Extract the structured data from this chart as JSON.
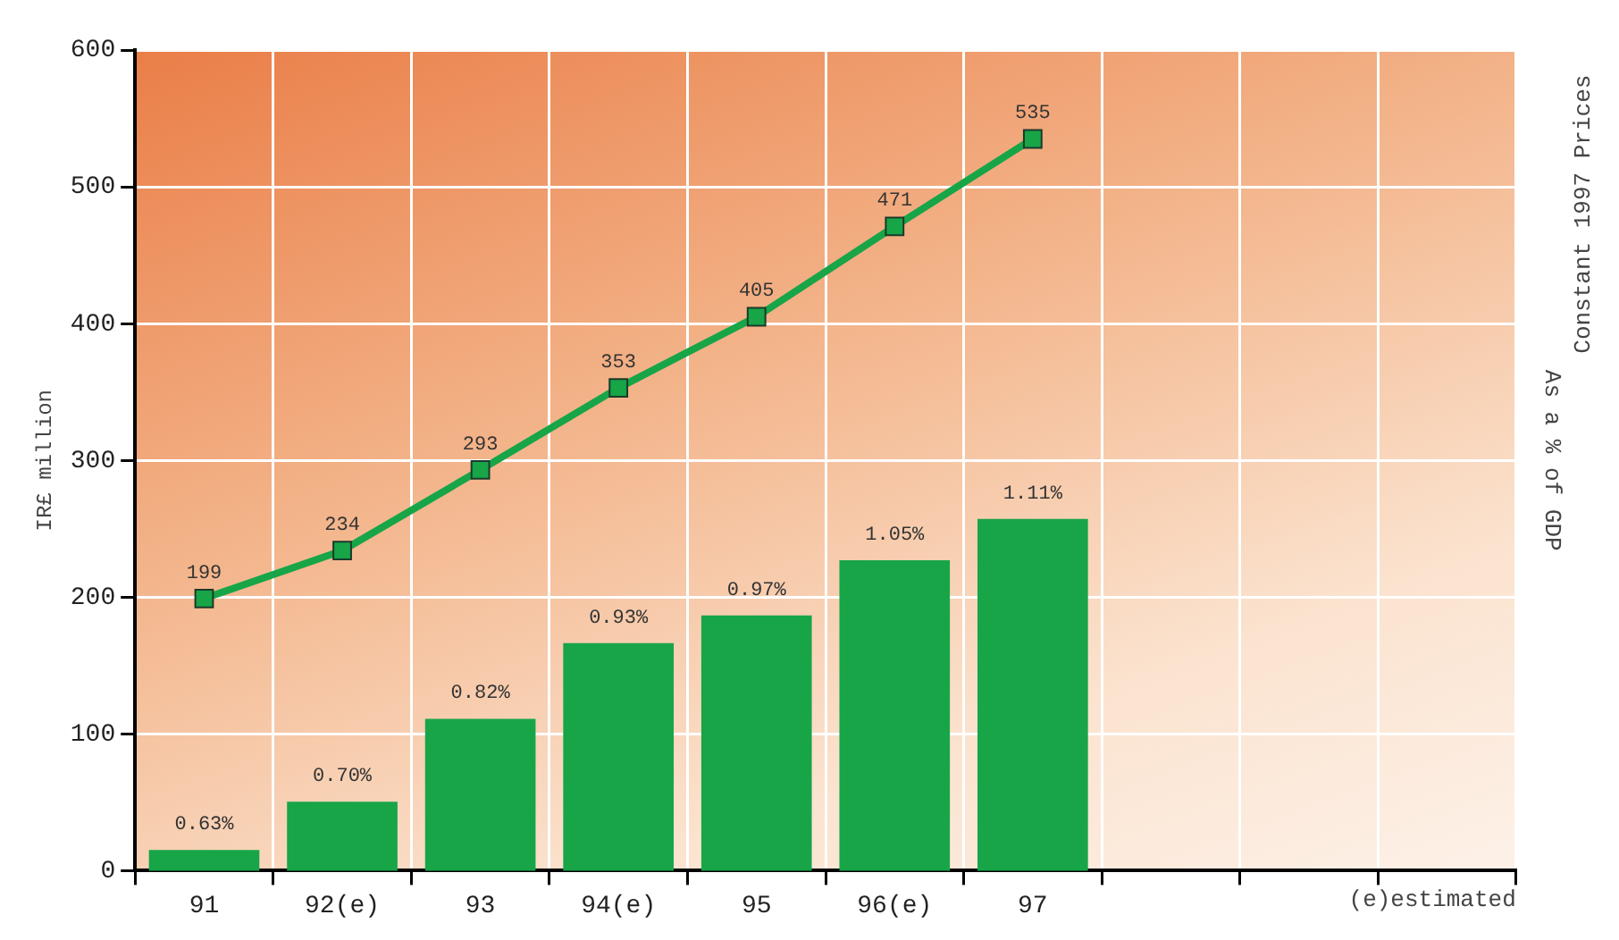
{
  "chart_data": {
    "type": "bar",
    "ylabel": "IR£ million",
    "y2label": "As a % of GDP",
    "annotations": [
      "Constant 1997 Prices",
      "(e)estimated"
    ],
    "categories": [
      "91",
      "92(e)",
      "93",
      "94(e)",
      "95",
      "96(e)",
      "97",
      null,
      null,
      null
    ],
    "series": [
      {
        "axis": "y2",
        "color": "#17a548",
        "values": [
          0.63,
          0.7,
          0.82,
          0.93,
          0.97,
          1.05,
          1.11,
          null,
          null,
          null
        ],
        "value_labels": [
          "0.63%",
          "0.70%",
          "0.82%",
          "0.93%",
          "0.97%",
          "1.05%",
          "1.11%",
          null,
          null,
          null
        ]
      },
      {
        "type": "line",
        "axis": "y",
        "color": "#17a548",
        "values": [
          199,
          234,
          293,
          353,
          405,
          471,
          535,
          null,
          null,
          null
        ]
      }
    ],
    "ylim": [
      0,
      600
    ],
    "yticks": [
      0,
      100,
      200,
      300,
      400,
      500,
      600
    ],
    "y2lim": [
      0.6,
      1.79
    ],
    "data_labels": true,
    "grid": true,
    "legend": false,
    "marker": "square",
    "line_style": "solid"
  }
}
